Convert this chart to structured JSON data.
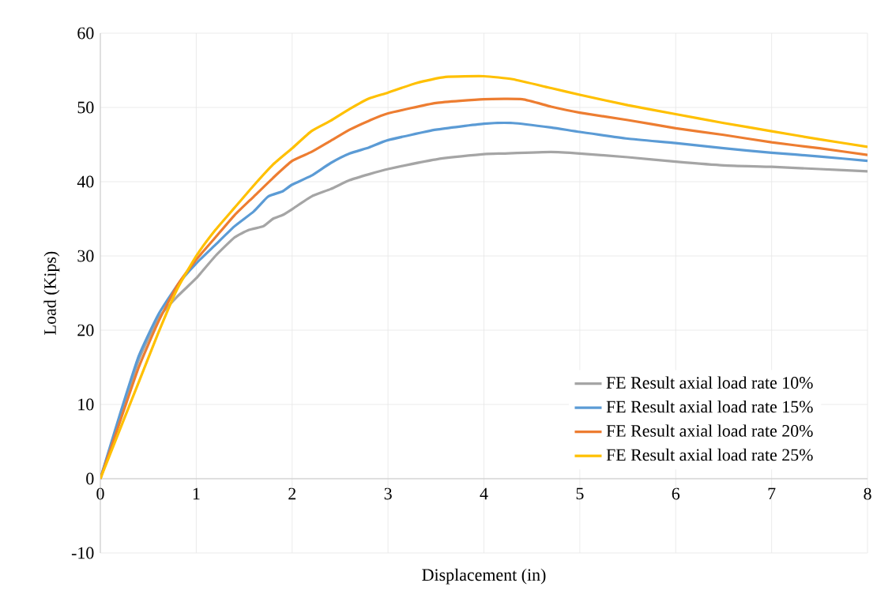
{
  "chart_data": {
    "type": "line",
    "xlabel": "Displacement (in)",
    "ylabel": "Load (Kips)",
    "xlim": [
      0,
      8
    ],
    "xticks": [
      0,
      1,
      2,
      3,
      4,
      5,
      6,
      7,
      8
    ],
    "ylim": [
      -10,
      60
    ],
    "yticks": [
      -10,
      0,
      10,
      20,
      30,
      40,
      50,
      60
    ],
    "grid": true,
    "legend": "bottom right",
    "series": [
      {
        "name": "FE Result axial load rate 10%",
        "color": "#a5a5a5",
        "x": [
          0,
          0.2,
          0.4,
          0.6,
          0.8,
          1,
          1.2,
          1.4,
          1.55,
          1.7,
          1.8,
          1.9,
          2,
          2.2,
          2.4,
          2.6,
          2.8,
          3,
          3.5,
          4,
          4.2,
          4.7,
          5,
          5.5,
          6,
          6.5,
          7,
          7.5,
          8
        ],
        "values": [
          0,
          8,
          16,
          21.5,
          24.5,
          27,
          30,
          32.5,
          33.5,
          34,
          35,
          35.5,
          36.3,
          38,
          39,
          40.2,
          41,
          41.7,
          43,
          43.7,
          43.8,
          44,
          43.8,
          43.3,
          42.7,
          42.2,
          42,
          41.7,
          41.4
        ]
      },
      {
        "name": "FE Result axial load rate 15%",
        "color": "#5b9bd5",
        "x": [
          0,
          0.2,
          0.4,
          0.6,
          0.8,
          1,
          1.2,
          1.4,
          1.6,
          1.75,
          1.9,
          2,
          2.2,
          2.4,
          2.6,
          2.8,
          3,
          3.5,
          4,
          4.3,
          4.7,
          5,
          5.5,
          6,
          6.5,
          7,
          7.5,
          8
        ],
        "values": [
          0,
          8.5,
          16.5,
          22,
          26,
          29,
          31.5,
          34,
          36,
          38,
          38.7,
          39.6,
          40.8,
          42.5,
          43.8,
          44.6,
          45.6,
          47,
          47.8,
          47.9,
          47.3,
          46.7,
          45.8,
          45.2,
          44.5,
          43.9,
          43.4,
          42.8
        ]
      },
      {
        "name": "FE Result axial load rate 20%",
        "color": "#ed7d31",
        "x": [
          0,
          0.2,
          0.4,
          0.6,
          0.8,
          1,
          1.2,
          1.4,
          1.6,
          1.8,
          2,
          2.2,
          2.4,
          2.6,
          2.8,
          3,
          3.5,
          4,
          4.4,
          4.7,
          5,
          5.5,
          6,
          6.5,
          7,
          7.5,
          8
        ],
        "values": [
          0,
          7.5,
          15,
          21,
          26,
          29.5,
          32.5,
          35.5,
          38,
          40.5,
          42.8,
          44,
          45.5,
          47,
          48.2,
          49.2,
          50.6,
          51.1,
          51.1,
          50.1,
          49.3,
          48.3,
          47.2,
          46.3,
          45.3,
          44.5,
          43.6
        ]
      },
      {
        "name": "FE Result axial load rate 25%",
        "color": "#ffc000",
        "x": [
          0,
          0.2,
          0.4,
          0.6,
          0.8,
          1,
          1.2,
          1.4,
          1.6,
          1.8,
          2,
          2.2,
          2.4,
          2.6,
          2.8,
          3,
          3.3,
          3.6,
          4,
          4.3,
          4.7,
          5,
          5.5,
          6,
          6.5,
          7,
          7.5,
          8
        ],
        "values": [
          0,
          6.5,
          13,
          19.5,
          25.5,
          30,
          33.5,
          36.5,
          39.5,
          42.3,
          44.5,
          46.8,
          48.2,
          49.8,
          51.2,
          52,
          53.3,
          54.1,
          54.2,
          53.8,
          52.6,
          51.7,
          50.3,
          49.1,
          47.9,
          46.8,
          45.7,
          44.7
        ]
      }
    ]
  }
}
